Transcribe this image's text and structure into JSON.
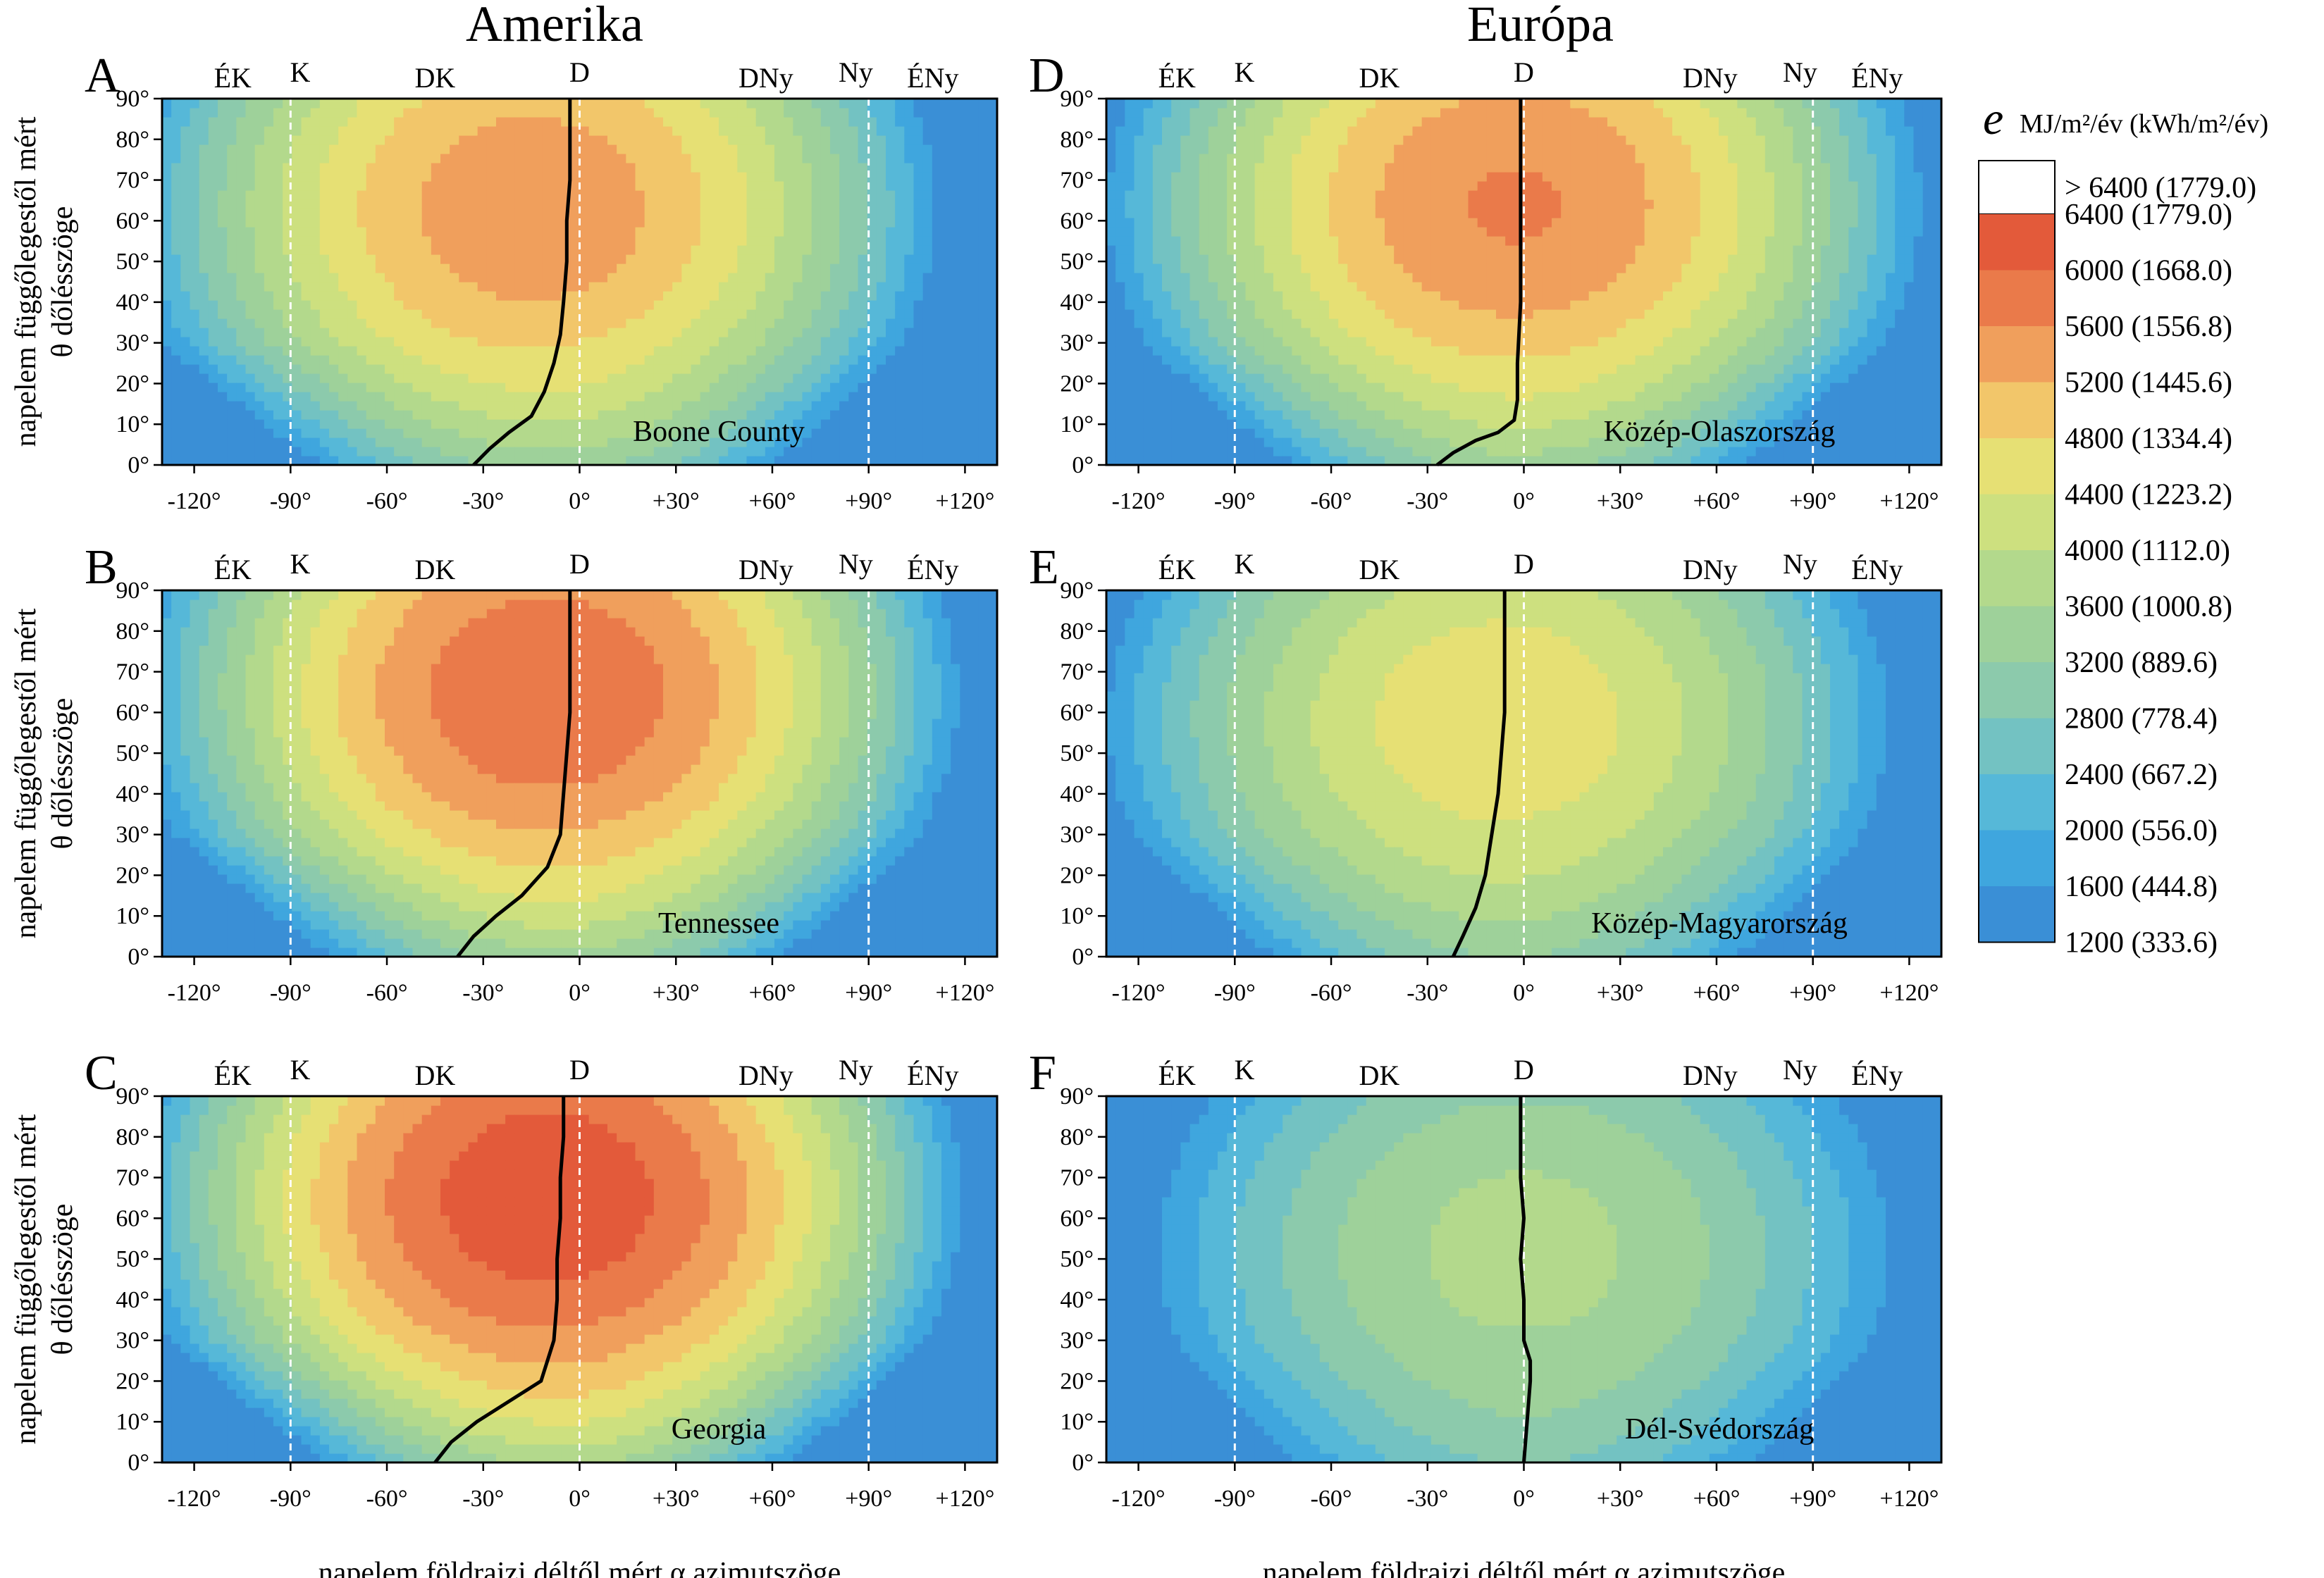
{
  "columns": [
    {
      "title": "Amerika"
    },
    {
      "title": "Európa"
    }
  ],
  "axes": {
    "ylabel_line1": "napelem függőlegestől mért",
    "ylabel_line2": "θ dőlésszöge",
    "xlabel": "napelem földrajzi déltől mért α azimutszöge",
    "x_ticks": [
      "-120°",
      "-90°",
      "-60°",
      "-30°",
      "0°",
      "+30°",
      "+60°",
      "+90°",
      "+120°"
    ],
    "y_ticks": [
      "0°",
      "10°",
      "20°",
      "30°",
      "40°",
      "50°",
      "60°",
      "70°",
      "80°",
      "90°"
    ],
    "directions": [
      "ÉK",
      "K",
      "DK",
      "D",
      "DNy",
      "Ny",
      "ÉNy"
    ]
  },
  "legend": {
    "symbol": "e",
    "unit": "MJ/m²/év (kWh/m²/év)",
    "top_label": "> 6400 (1779.0)",
    "levels": [
      "6400 (1779.0)",
      "6000 (1668.0)",
      "5600 (1556.8)",
      "5200 (1445.6)",
      "4800 (1334.4)",
      "4400 (1223.2)",
      "4000 (1112.0)",
      "3600 (1000.8)",
      "3200 (889.6)",
      "2800 (778.4)",
      "2400 (667.2)",
      "2000 (556.0)",
      "1600 (444.8)",
      "1200 (333.6)"
    ],
    "colors": {
      "1200": "#3a8fd6",
      "1600": "#3fa6de",
      "2000": "#56b8d8",
      "2400": "#73c2c2",
      "2800": "#8ccaac",
      "3200": "#9ed19a",
      "3600": "#b3d98c",
      "4000": "#cde07f",
      "4400": "#e6e074",
      "4800": "#f2c66a",
      "5200": "#f09f5c",
      "5600": "#ea7a4a",
      "6000": "#e35a3a",
      "6400": "#d83a2c"
    }
  },
  "chart_data": [
    {
      "type": "heatmap",
      "panel": "A",
      "label": "Boone County",
      "x_range": [
        -130,
        130
      ],
      "y_range": [
        0,
        90
      ],
      "peak": {
        "azimuth": -15,
        "tilt": 63,
        "value": 5500
      },
      "optimal_path": [
        [
          -33,
          0
        ],
        [
          -28,
          4
        ],
        [
          -22,
          8
        ],
        [
          -15,
          12
        ],
        [
          -11,
          18
        ],
        [
          -8,
          25
        ],
        [
          -6,
          32
        ],
        [
          -5,
          40
        ],
        [
          -4,
          50
        ],
        [
          -4,
          60
        ],
        [
          -3,
          70
        ],
        [
          -3,
          80
        ],
        [
          -3,
          90
        ]
      ]
    },
    {
      "type": "heatmap",
      "panel": "B",
      "label": "Tennessee",
      "x_range": [
        -130,
        130
      ],
      "y_range": [
        0,
        90
      ],
      "peak": {
        "azimuth": -10,
        "tilt": 65,
        "value": 5950
      },
      "optimal_path": [
        [
          -38,
          0
        ],
        [
          -33,
          5
        ],
        [
          -26,
          10
        ],
        [
          -18,
          15
        ],
        [
          -10,
          22
        ],
        [
          -6,
          30
        ],
        [
          -5,
          40
        ],
        [
          -4,
          50
        ],
        [
          -3,
          60
        ],
        [
          -3,
          70
        ],
        [
          -3,
          80
        ],
        [
          -3,
          90
        ]
      ]
    },
    {
      "type": "heatmap",
      "panel": "C",
      "label": "Georgia",
      "x_range": [
        -130,
        130
      ],
      "y_range": [
        0,
        90
      ],
      "peak": {
        "azimuth": -10,
        "tilt": 65,
        "value": 6300
      },
      "optimal_path": [
        [
          -45,
          0
        ],
        [
          -40,
          5
        ],
        [
          -32,
          10
        ],
        [
          -22,
          15
        ],
        [
          -12,
          20
        ],
        [
          -8,
          30
        ],
        [
          -7,
          40
        ],
        [
          -7,
          50
        ],
        [
          -6,
          60
        ],
        [
          -6,
          70
        ],
        [
          -5,
          80
        ],
        [
          -5,
          90
        ]
      ]
    },
    {
      "type": "heatmap",
      "panel": "D",
      "label": "Közép-Olaszország",
      "x_range": [
        -130,
        130
      ],
      "y_range": [
        0,
        90
      ],
      "peak": {
        "azimuth": -3,
        "tilt": 64,
        "value": 5650
      },
      "optimal_path": [
        [
          -27,
          0
        ],
        [
          -22,
          3
        ],
        [
          -15,
          6
        ],
        [
          -8,
          8
        ],
        [
          -3,
          11
        ],
        [
          -2,
          16
        ],
        [
          -2,
          25
        ],
        [
          -1,
          40
        ],
        [
          -1,
          55
        ],
        [
          -1,
          70
        ],
        [
          -1,
          90
        ]
      ]
    },
    {
      "type": "heatmap",
      "panel": "E",
      "label": "Közép-Magyarország",
      "x_range": [
        -130,
        130
      ],
      "y_range": [
        0,
        90
      ],
      "peak": {
        "azimuth": -8,
        "tilt": 58,
        "value": 4700
      },
      "optimal_path": [
        [
          -22,
          0
        ],
        [
          -19,
          5
        ],
        [
          -15,
          12
        ],
        [
          -12,
          20
        ],
        [
          -10,
          30
        ],
        [
          -8,
          40
        ],
        [
          -7,
          50
        ],
        [
          -6,
          60
        ],
        [
          -6,
          70
        ],
        [
          -6,
          80
        ],
        [
          -6,
          90
        ]
      ]
    },
    {
      "type": "heatmap",
      "panel": "F",
      "label": "Dél-Svédország",
      "x_range": [
        -130,
        130
      ],
      "y_range": [
        0,
        90
      ],
      "peak": {
        "azimuth": 0,
        "tilt": 52,
        "value": 3750
      },
      "optimal_path": [
        [
          0,
          0
        ],
        [
          1,
          10
        ],
        [
          2,
          20
        ],
        [
          2,
          25
        ],
        [
          0,
          30
        ],
        [
          0,
          40
        ],
        [
          -1,
          50
        ],
        [
          0,
          60
        ],
        [
          -1,
          70
        ],
        [
          -1,
          80
        ],
        [
          -1,
          90
        ]
      ]
    }
  ]
}
